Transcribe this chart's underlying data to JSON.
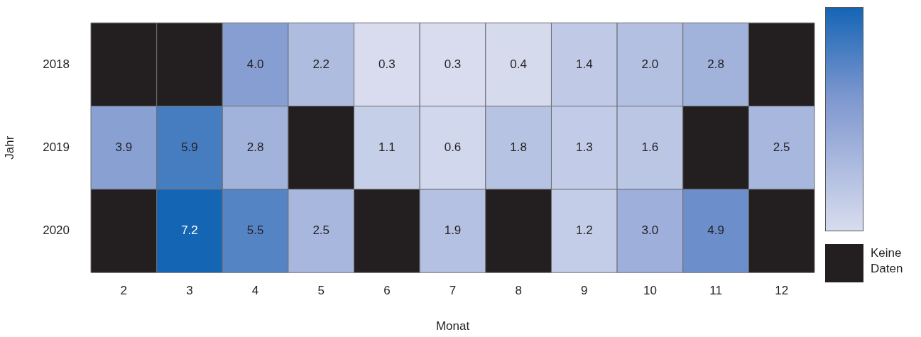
{
  "chart_data": {
    "type": "heatmap",
    "xlabel": "Monat",
    "ylabel": "Jahr",
    "categories": [
      "2",
      "3",
      "4",
      "5",
      "6",
      "7",
      "8",
      "9",
      "10",
      "11",
      "12"
    ],
    "y_categories": [
      "2018",
      "2019",
      "2020"
    ],
    "cells": [
      [
        null,
        null,
        4.0,
        2.2,
        0.3,
        0.3,
        0.4,
        1.4,
        2.0,
        2.8,
        null
      ],
      [
        3.9,
        5.9,
        2.8,
        null,
        1.1,
        0.6,
        1.8,
        1.3,
        1.6,
        null,
        2.5
      ],
      [
        null,
        7.2,
        5.5,
        2.5,
        null,
        1.9,
        null,
        1.2,
        3.0,
        4.9,
        null
      ]
    ],
    "cell_labels": [
      [
        null,
        null,
        "4.0",
        "2.2",
        "0.3",
        "0.3",
        "0.4",
        "1.4",
        "2.0",
        "2.8",
        null
      ],
      [
        "3.9",
        "5.9",
        "2.8",
        null,
        "1.1",
        "0.6",
        "1.8",
        "1.3",
        "1.6",
        null,
        "2.5"
      ],
      [
        null,
        "7.2",
        "5.5",
        "2.5",
        null,
        "1.9",
        null,
        "1.2",
        "3.0",
        "4.9",
        null
      ]
    ],
    "annotations": [
      "Keine Daten"
    ]
  }
}
